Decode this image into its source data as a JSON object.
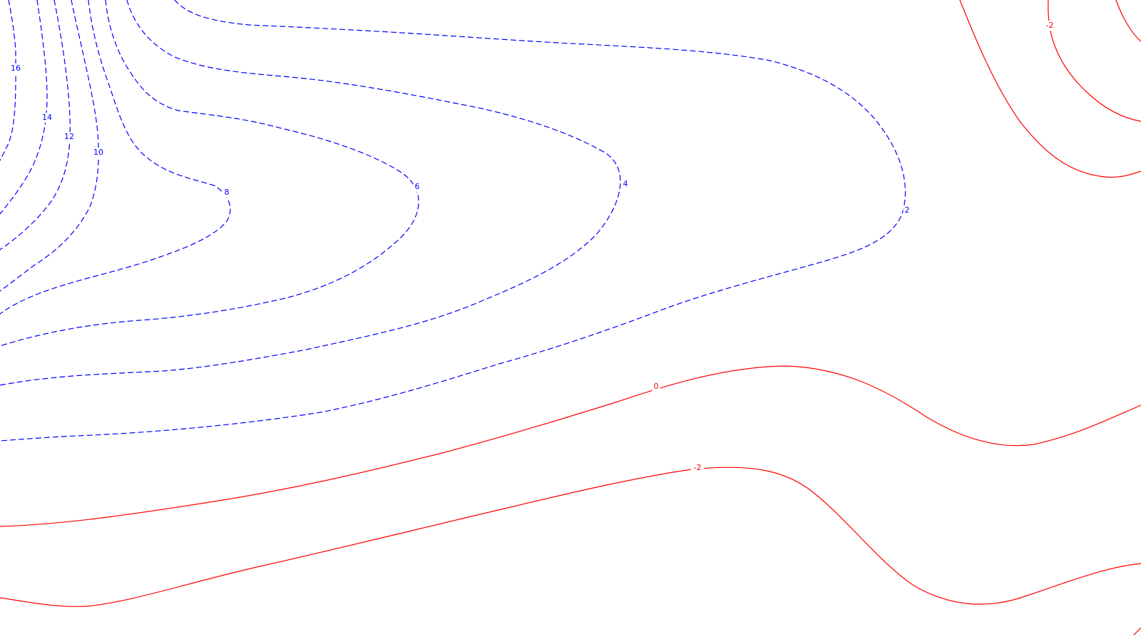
{
  "chart_data": {
    "type": "contour",
    "title": "",
    "xlabel": "",
    "ylabel": "",
    "grid": false,
    "legend": "none",
    "contour_interval": 2,
    "styles": {
      "positive": {
        "color": "#0000ff",
        "dash": "dashed"
      },
      "zero_negative": {
        "color": "#ff0000",
        "dash": "solid"
      }
    },
    "levels": [
      {
        "value": 16,
        "label": "16"
      },
      {
        "value": 14,
        "label": "14"
      },
      {
        "value": 12,
        "label": "12"
      },
      {
        "value": 10,
        "label": "10"
      },
      {
        "value": 8,
        "label": "8"
      },
      {
        "value": 6,
        "label": "6"
      },
      {
        "value": 4,
        "label": "4"
      },
      {
        "value": 2,
        "label": "2"
      },
      {
        "value": 0,
        "label": "0"
      },
      {
        "value": -2,
        "label": "-2"
      }
    ]
  }
}
